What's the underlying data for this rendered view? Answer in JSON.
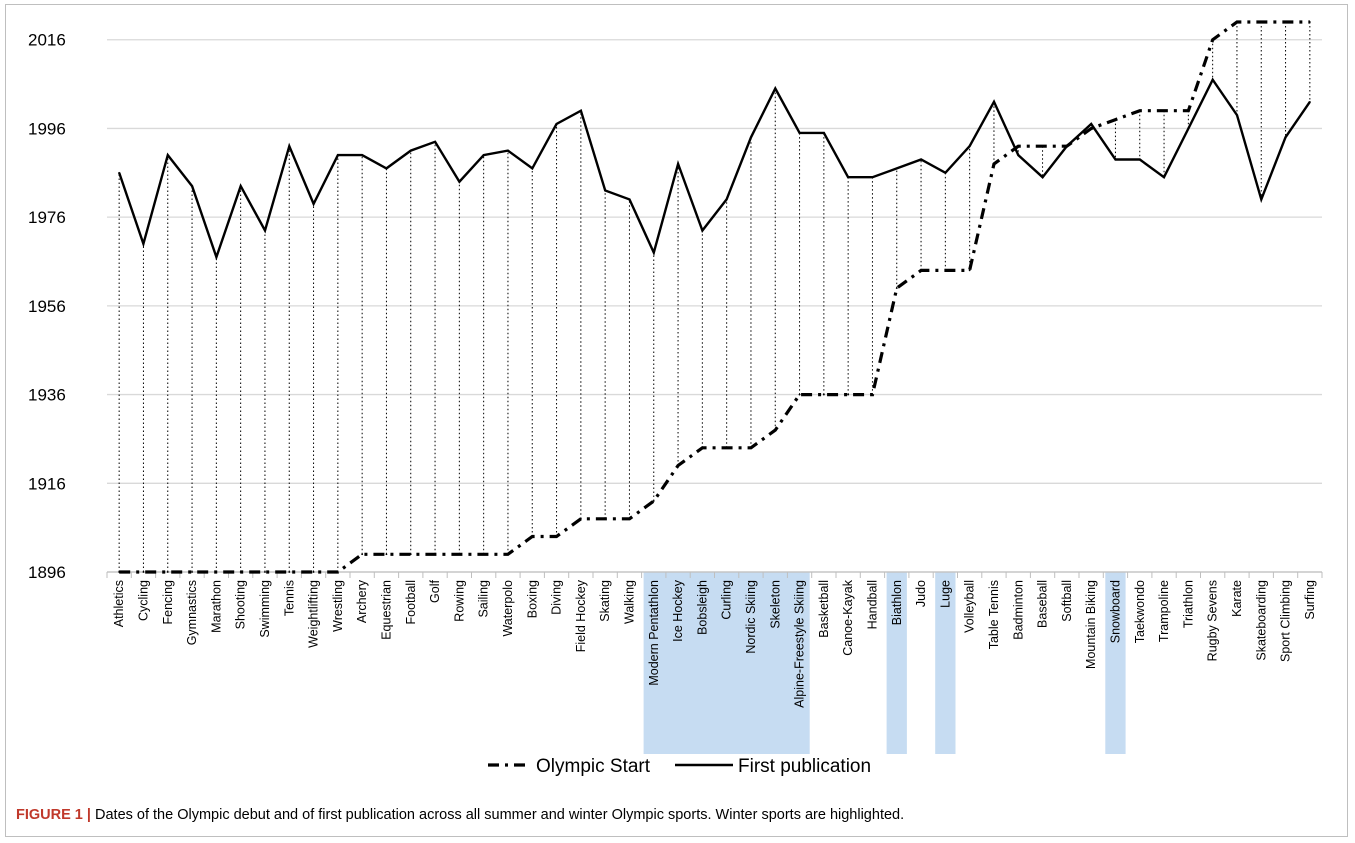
{
  "caption": {
    "label": "FIGURE 1",
    "text": "Dates of the Olympic debut and of first publication across all summer and winter Olympic sports. Winter sports are highlighted."
  },
  "chart_data": {
    "type": "line",
    "title": "",
    "xlabel": "",
    "ylabel": "",
    "ylim": [
      1896,
      2020
    ],
    "yticks": [
      1896,
      1916,
      1936,
      1956,
      1976,
      1996,
      2016
    ],
    "grid": true,
    "legend_position": "bottom",
    "categories": [
      "Athletics",
      "Cycling",
      "Fencing",
      "Gymnastics",
      "Marathon",
      "Shooting",
      "Swimming",
      "Tennis",
      "Weightlifting",
      "Wrestling",
      "Archery",
      "Equestrian",
      "Football",
      "Golf",
      "Rowing",
      "Sailing",
      "Waterpolo",
      "Boxing",
      "Diving",
      "Field Hockey",
      "Skating",
      "Walking",
      "Modern Pentathlon",
      "Ice Hockey",
      "Bobsleigh",
      "Curling",
      "Nordic Skiing",
      "Skeleton",
      "Alpine-Freestyle Skiing",
      "Basketball",
      "Canoe-Kayak",
      "Handball",
      "Biathlon",
      "Judo",
      "Luge",
      "Volleyball",
      "Table Tennis",
      "Badminton",
      "Baseball",
      "Softball",
      "Mountain Biking",
      "Snowboard",
      "Taekwondo",
      "Trampoline",
      "Triathlon",
      "Rugby Sevens",
      "Karate",
      "Skateboarding",
      "Sport Climbing",
      "Surfing"
    ],
    "winter_sports": [
      "Modern Pentathlon",
      "Ice Hockey",
      "Bobsleigh",
      "Curling",
      "Nordic Skiing",
      "Skeleton",
      "Alpine-Freestyle Skiing",
      "Biathlon",
      "Luge",
      "Snowboard"
    ],
    "highlight_color": "#c6dcf2",
    "series": [
      {
        "name": "Olympic Start",
        "style": "dash-dot",
        "values": [
          1896,
          1896,
          1896,
          1896,
          1896,
          1896,
          1896,
          1896,
          1896,
          1896,
          1900,
          1900,
          1900,
          1900,
          1900,
          1900,
          1900,
          1904,
          1904,
          1908,
          1908,
          1908,
          1912,
          1920,
          1924,
          1924,
          1924,
          1928,
          1936,
          1936,
          1936,
          1936,
          1960,
          1964,
          1964,
          1964,
          1988,
          1992,
          1992,
          1992,
          1996,
          1998,
          2000,
          2000,
          2000,
          2016,
          2020,
          2020,
          2020,
          2020
        ]
      },
      {
        "name": "First publication",
        "style": "solid",
        "values": [
          1986,
          1970,
          1990,
          1983,
          1967,
          1983,
          1973,
          1992,
          1979,
          1990,
          1990,
          1987,
          1991,
          1993,
          1984,
          1990,
          1991,
          1987,
          1997,
          2000,
          1982,
          1980,
          1968,
          1988,
          1973,
          1980,
          1994,
          2005,
          1995,
          1995,
          1985,
          1985,
          1987,
          1989,
          1986,
          1992,
          2002,
          1990,
          1985,
          1992,
          1997,
          1989,
          1989,
          1985,
          1996,
          2007,
          1999,
          1980,
          1994,
          2002
        ]
      }
    ]
  }
}
